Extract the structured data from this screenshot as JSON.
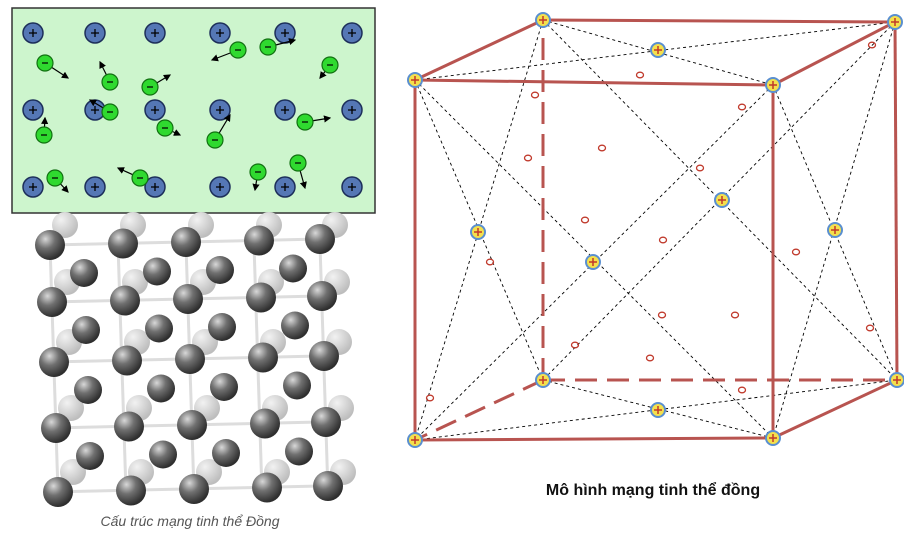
{
  "left_caption": "Cấu trúc mạng tinh thể Đồng",
  "right_caption": "Mô hình mạng tinh thể đồng"
}
